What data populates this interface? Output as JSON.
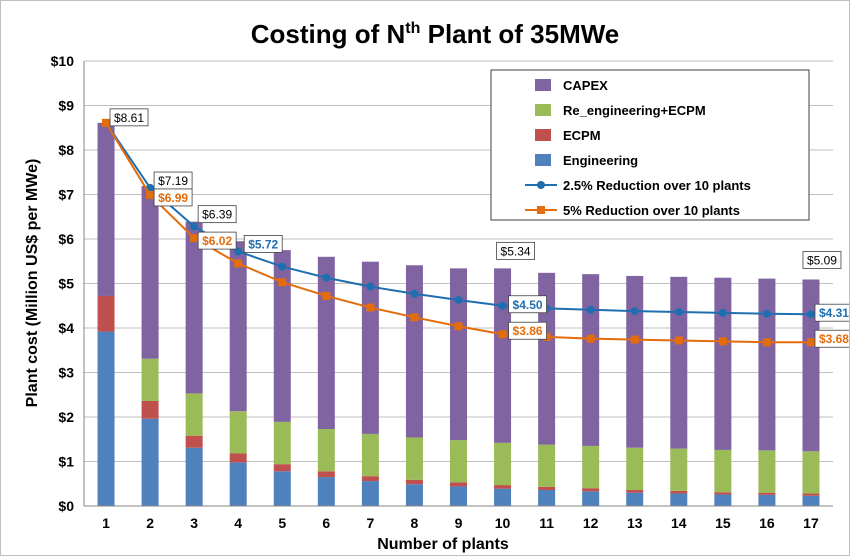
{
  "chart_data": {
    "type": "bar",
    "title_main": "Costing of N",
    "title_sup": "th",
    "title_tail": " Plant of 35MWe",
    "xlabel": "Number of  plants",
    "ylabel": "Plant cost (Million US$ per MWe)",
    "ylim": [
      0,
      10
    ],
    "y_ticks": [
      "$0",
      "$1",
      "$2",
      "$3",
      "$4",
      "$5",
      "$6",
      "$7",
      "$8",
      "$9",
      "$10"
    ],
    "categories": [
      "1",
      "2",
      "3",
      "4",
      "5",
      "6",
      "7",
      "8",
      "9",
      "10",
      "11",
      "12",
      "13",
      "14",
      "15",
      "16",
      "17"
    ],
    "grid": true,
    "legend_position": "top-right",
    "stacked_series": [
      {
        "name": "Engineering",
        "color": "#4f81bd",
        "values": [
          3.92,
          1.96,
          1.31,
          0.98,
          0.78,
          0.65,
          0.56,
          0.49,
          0.44,
          0.39,
          0.36,
          0.33,
          0.3,
          0.28,
          0.26,
          0.25,
          0.23
        ]
      },
      {
        "name": "ECPM",
        "color": "#c0504d",
        "values": [
          0.8,
          0.4,
          0.27,
          0.2,
          0.16,
          0.13,
          0.11,
          0.1,
          0.09,
          0.08,
          0.07,
          0.07,
          0.06,
          0.06,
          0.05,
          0.05,
          0.05
        ]
      },
      {
        "name": "Re_engineering+ECPM",
        "color": "#9bbb59",
        "values": [
          0,
          0.95,
          0.95,
          0.95,
          0.95,
          0.95,
          0.95,
          0.95,
          0.95,
          0.95,
          0.95,
          0.95,
          0.95,
          0.95,
          0.95,
          0.95,
          0.95
        ]
      },
      {
        "name": "CAPEX",
        "color": "#8064a2",
        "values": [
          3.89,
          3.88,
          3.86,
          3.82,
          3.86,
          3.87,
          3.87,
          3.87,
          3.86,
          3.92,
          3.86,
          3.86,
          3.86,
          3.86,
          3.87,
          3.86,
          3.86
        ]
      }
    ],
    "line_series": [
      {
        "name": "2.5% Reduction over 10 plants",
        "color": "#1f6fb0",
        "marker": "circle",
        "values": [
          8.61,
          7.15,
          6.28,
          5.72,
          5.38,
          5.13,
          4.93,
          4.77,
          4.63,
          4.5,
          4.44,
          4.41,
          4.38,
          4.36,
          4.34,
          4.32,
          4.31
        ]
      },
      {
        "name": "5% Reduction over 10 plants",
        "color": "#e46c0a",
        "marker": "square",
        "values": [
          8.61,
          6.99,
          6.02,
          5.45,
          5.03,
          4.72,
          4.46,
          4.24,
          4.04,
          3.86,
          3.8,
          3.76,
          3.74,
          3.72,
          3.7,
          3.68,
          3.68
        ]
      }
    ],
    "legend_entries": [
      {
        "label": "CAPEX",
        "kind": "bar",
        "color": "#8064a2"
      },
      {
        "label": "Re_engineering+ECPM",
        "kind": "bar",
        "color": "#9bbb59"
      },
      {
        "label": "ECPM",
        "kind": "bar",
        "color": "#c0504d"
      },
      {
        "label": "Engineering",
        "kind": "bar",
        "color": "#4f81bd"
      },
      {
        "label": "2.5% Reduction over 10 plants",
        "kind": "line",
        "color": "#1f6fb0",
        "marker": "circle"
      },
      {
        "label": "5% Reduction over 10 plants",
        "kind": "line",
        "color": "#e46c0a",
        "marker": "square"
      }
    ],
    "annotations": [
      {
        "text": "$8.61",
        "x": 1,
        "y": 8.61,
        "color": "#000000"
      },
      {
        "text": "$7.19",
        "x": 2,
        "y": 7.19,
        "color": "#000000"
      },
      {
        "text": "$6.99",
        "x": 2,
        "y": 6.99,
        "color": "#e46c0a"
      },
      {
        "text": "$6.39",
        "x": 3,
        "y": 6.39,
        "color": "#000000"
      },
      {
        "text": "$6.02",
        "x": 3,
        "y": 6.02,
        "color": "#e46c0a"
      },
      {
        "text": "$5.72",
        "x": 4,
        "y": 5.72,
        "color": "#1f6fb0"
      },
      {
        "text": "$5.34",
        "x": 10,
        "y": 5.34,
        "color": "#000000"
      },
      {
        "text": "$4.50",
        "x": 10,
        "y": 4.5,
        "color": "#1f6fb0"
      },
      {
        "text": "$3.86",
        "x": 10,
        "y": 3.86,
        "color": "#e46c0a"
      },
      {
        "text": "$5.09",
        "x": 17,
        "y": 5.09,
        "color": "#000000"
      },
      {
        "text": "$4.31",
        "x": 17,
        "y": 4.31,
        "color": "#1f6fb0"
      },
      {
        "text": "$3.68",
        "x": 17,
        "y": 3.68,
        "color": "#e46c0a"
      }
    ]
  }
}
